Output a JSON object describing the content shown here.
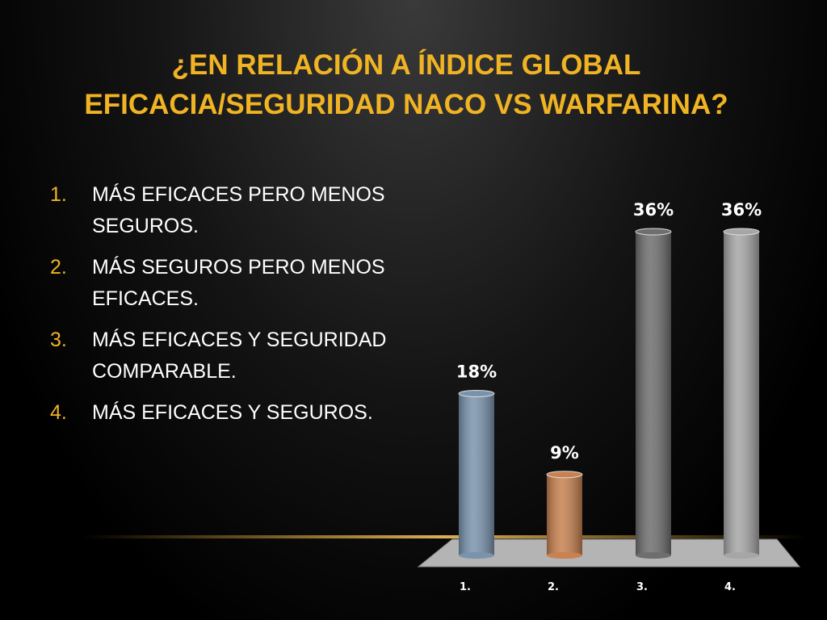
{
  "slide": {
    "title": [
      "¿EN RELACIÓN A ÍNDICE GLOBAL",
      "EFICACIA/SEGURIDAD NACO VS WARFARINA?"
    ],
    "items": [
      {
        "marker": "1.",
        "text": "MÁS EFICACES PERO MENOS SEGUROS."
      },
      {
        "marker": "2.",
        "text": "MÁS SEGUROS PERO MENOS EFICACES."
      },
      {
        "marker": "3.",
        "text": "MÁS EFICACES Y SEGURIDAD COMPARABLE."
      },
      {
        "marker": "4.",
        "text": "MÁS EFICACES Y SEGUROS."
      }
    ]
  },
  "chart_data": {
    "type": "bar3d",
    "categories": [
      "1.",
      "2.",
      "3.",
      "4."
    ],
    "values": [
      18,
      9,
      36,
      36
    ],
    "value_labels": [
      "18%",
      "9%",
      "36%",
      "36%"
    ],
    "colors": [
      "#7a93ad",
      "#c8814f",
      "#6e6e6e",
      "#a6a6a6"
    ]
  }
}
